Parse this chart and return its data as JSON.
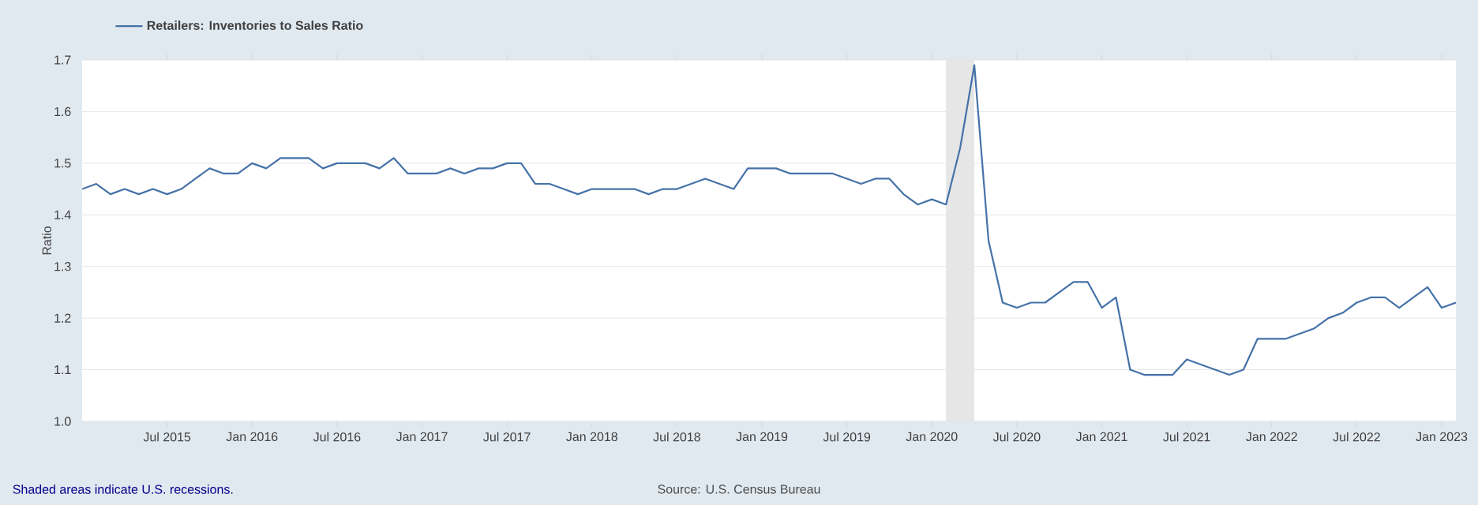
{
  "chart_data": {
    "type": "line",
    "ylabel": "Ratio",
    "x": [
      "2015-01",
      "2015-02",
      "2015-03",
      "2015-04",
      "2015-05",
      "2015-06",
      "2015-07",
      "2015-08",
      "2015-09",
      "2015-10",
      "2015-11",
      "2015-12",
      "2016-01",
      "2016-02",
      "2016-03",
      "2016-04",
      "2016-05",
      "2016-06",
      "2016-07",
      "2016-08",
      "2016-09",
      "2016-10",
      "2016-11",
      "2016-12",
      "2017-01",
      "2017-02",
      "2017-03",
      "2017-04",
      "2017-05",
      "2017-06",
      "2017-07",
      "2017-08",
      "2017-09",
      "2017-10",
      "2017-11",
      "2017-12",
      "2018-01",
      "2018-02",
      "2018-03",
      "2018-04",
      "2018-05",
      "2018-06",
      "2018-07",
      "2018-08",
      "2018-09",
      "2018-10",
      "2018-11",
      "2018-12",
      "2019-01",
      "2019-02",
      "2019-03",
      "2019-04",
      "2019-05",
      "2019-06",
      "2019-07",
      "2019-08",
      "2019-09",
      "2019-10",
      "2019-11",
      "2019-12",
      "2020-01",
      "2020-02",
      "2020-03",
      "2020-04",
      "2020-05",
      "2020-06",
      "2020-07",
      "2020-08",
      "2020-09",
      "2020-10",
      "2020-11",
      "2020-12",
      "2021-01",
      "2021-02",
      "2021-03",
      "2021-04",
      "2021-05",
      "2021-06",
      "2021-07",
      "2021-08",
      "2021-09",
      "2021-10",
      "2021-11",
      "2021-12",
      "2022-01",
      "2022-02",
      "2022-03",
      "2022-04",
      "2022-05",
      "2022-06",
      "2022-07",
      "2022-08",
      "2022-09",
      "2022-10",
      "2022-11",
      "2022-12",
      "2023-01",
      "2023-02"
    ],
    "series": [
      {
        "name": "Retailers: Inventories to Sales Ratio",
        "color": "#4572a7",
        "values": [
          1.45,
          1.46,
          1.44,
          1.45,
          1.44,
          1.45,
          1.44,
          1.45,
          1.47,
          1.49,
          1.48,
          1.48,
          1.5,
          1.49,
          1.51,
          1.51,
          1.51,
          1.49,
          1.5,
          1.5,
          1.5,
          1.49,
          1.51,
          1.48,
          1.48,
          1.48,
          1.49,
          1.48,
          1.49,
          1.49,
          1.5,
          1.5,
          1.46,
          1.46,
          1.45,
          1.44,
          1.45,
          1.45,
          1.45,
          1.45,
          1.44,
          1.45,
          1.45,
          1.46,
          1.47,
          1.46,
          1.45,
          1.49,
          1.49,
          1.49,
          1.48,
          1.48,
          1.48,
          1.48,
          1.47,
          1.46,
          1.47,
          1.47,
          1.44,
          1.42,
          1.43,
          1.42,
          1.53,
          1.69,
          1.35,
          1.23,
          1.22,
          1.23,
          1.23,
          1.25,
          1.27,
          1.27,
          1.22,
          1.24,
          1.1,
          1.09,
          1.09,
          1.09,
          1.12,
          1.11,
          1.1,
          1.09,
          1.1,
          1.16,
          1.16,
          1.16,
          1.17,
          1.18,
          1.2,
          1.21,
          1.23,
          1.24,
          1.24,
          1.22,
          1.24,
          1.26,
          1.22,
          1.23
        ]
      }
    ],
    "xlim": [
      "2015-01",
      "2023-02"
    ],
    "xticks": [
      {
        "value": "2015-07",
        "label": "Jul 2015"
      },
      {
        "value": "2016-01",
        "label": "Jan 2016"
      },
      {
        "value": "2016-07",
        "label": "Jul 2016"
      },
      {
        "value": "2017-01",
        "label": "Jan 2017"
      },
      {
        "value": "2017-07",
        "label": "Jul 2017"
      },
      {
        "value": "2018-01",
        "label": "Jan 2018"
      },
      {
        "value": "2018-07",
        "label": "Jul 2018"
      },
      {
        "value": "2019-01",
        "label": "Jan 2019"
      },
      {
        "value": "2019-07",
        "label": "Jul 2019"
      },
      {
        "value": "2020-01",
        "label": "Jan 2020"
      },
      {
        "value": "2020-07",
        "label": "Jul 2020"
      },
      {
        "value": "2021-01",
        "label": "Jan 2021"
      },
      {
        "value": "2021-07",
        "label": "Jul 2021"
      },
      {
        "value": "2022-01",
        "label": "Jan 2022"
      },
      {
        "value": "2022-07",
        "label": "Jul 2022"
      },
      {
        "value": "2023-01",
        "label": "Jan 2023"
      }
    ],
    "ylim": [
      1.0,
      1.7
    ],
    "yticks": [
      {
        "value": 1.0,
        "label": "1.0"
      },
      1.1,
      1.2,
      1.3,
      1.4,
      1.5,
      1.6,
      1.7
    ],
    "bands": [
      {
        "axis": "x",
        "from": "2020-02",
        "to": "2020-04",
        "color": "#e6e6e6"
      }
    ],
    "grid": "y",
    "legend": "top left",
    "line_style": "solid",
    "annotations": [
      "Shaded areas indicate U.S. recessions.",
      "Source: U.S. Census Bureau"
    ]
  }
}
